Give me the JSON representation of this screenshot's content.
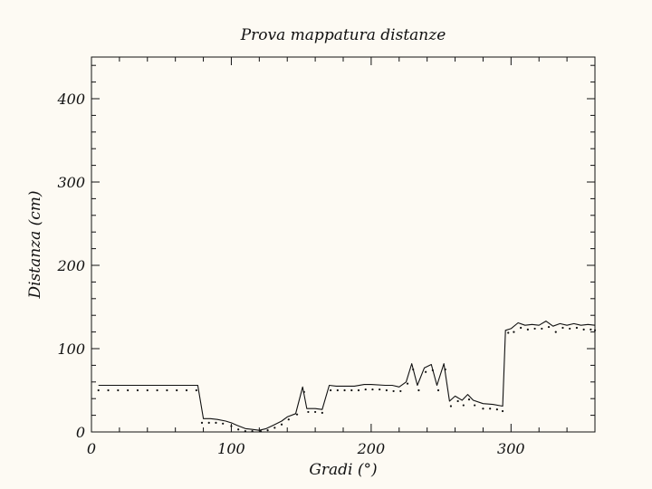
{
  "chart_data": {
    "type": "line",
    "title": "Prova mappatura distanze",
    "xlabel": "Gradi (°)",
    "ylabel": "Distanza (cm)",
    "xlim": [
      0,
      360
    ],
    "ylim": [
      0,
      450
    ],
    "x_ticks": [
      0,
      100,
      200,
      300
    ],
    "y_ticks": [
      0,
      100,
      200,
      300,
      400
    ],
    "x_tick_labels": [
      "0",
      "100",
      "200",
      "300"
    ],
    "y_tick_labels": [
      "0",
      "100",
      "200",
      "300",
      "400"
    ],
    "grid": false,
    "legend": "none",
    "colors": {
      "background": "#fdfaf3",
      "ink": "#111111"
    },
    "series": [
      {
        "style": "solid",
        "points": [
          [
            5,
            56
          ],
          [
            76,
            56
          ],
          [
            80,
            16
          ],
          [
            85,
            16
          ],
          [
            90,
            15
          ],
          [
            96,
            13
          ],
          [
            100,
            11
          ],
          [
            104,
            8
          ],
          [
            110,
            4
          ],
          [
            115,
            3
          ],
          [
            120,
            2
          ],
          [
            125,
            4
          ],
          [
            130,
            8
          ],
          [
            136,
            13
          ],
          [
            140,
            18
          ],
          [
            146,
            22
          ],
          [
            151,
            54
          ],
          [
            154,
            28
          ],
          [
            160,
            28
          ],
          [
            165,
            27
          ],
          [
            170,
            56
          ],
          [
            175,
            55
          ],
          [
            180,
            55
          ],
          [
            188,
            55
          ],
          [
            195,
            57
          ],
          [
            200,
            57
          ],
          [
            210,
            56
          ],
          [
            215,
            56
          ],
          [
            220,
            54
          ],
          [
            225,
            60
          ],
          [
            229,
            82
          ],
          [
            233,
            56
          ],
          [
            238,
            77
          ],
          [
            243,
            81
          ],
          [
            247,
            56
          ],
          [
            252,
            82
          ],
          [
            256,
            37
          ],
          [
            260,
            43
          ],
          [
            265,
            38
          ],
          [
            269,
            45
          ],
          [
            273,
            38
          ],
          [
            280,
            34
          ],
          [
            287,
            33
          ],
          [
            294,
            31
          ],
          [
            296,
            122
          ],
          [
            300,
            124
          ],
          [
            305,
            131
          ],
          [
            310,
            128
          ],
          [
            315,
            129
          ],
          [
            320,
            128
          ],
          [
            325,
            133
          ],
          [
            330,
            127
          ],
          [
            335,
            130
          ],
          [
            340,
            128
          ],
          [
            345,
            130
          ],
          [
            350,
            128
          ],
          [
            355,
            129
          ],
          [
            360,
            128
          ]
        ]
      },
      {
        "style": "dotted",
        "points": [
          [
            5,
            50
          ],
          [
            12,
            50
          ],
          [
            19,
            50
          ],
          [
            26,
            50
          ],
          [
            33,
            50
          ],
          [
            40,
            50
          ],
          [
            47,
            50
          ],
          [
            54,
            50
          ],
          [
            61,
            50
          ],
          [
            68,
            50
          ],
          [
            75,
            50
          ],
          [
            79,
            11
          ],
          [
            84,
            11
          ],
          [
            89,
            11
          ],
          [
            94,
            10
          ],
          [
            100,
            7
          ],
          [
            105,
            3
          ],
          [
            110,
            1
          ],
          [
            115,
            1
          ],
          [
            121,
            1
          ],
          [
            126,
            2
          ],
          [
            131,
            5
          ],
          [
            136,
            9
          ],
          [
            141,
            15
          ],
          [
            147,
            21
          ],
          [
            152,
            48
          ],
          [
            155,
            24
          ],
          [
            160,
            24
          ],
          [
            165,
            23
          ],
          [
            171,
            50
          ],
          [
            176,
            50
          ],
          [
            181,
            50
          ],
          [
            186,
            50
          ],
          [
            191,
            50
          ],
          [
            196,
            51
          ],
          [
            201,
            51
          ],
          [
            206,
            51
          ],
          [
            211,
            50
          ],
          [
            216,
            49
          ],
          [
            221,
            49
          ],
          [
            226,
            58
          ],
          [
            230,
            75
          ],
          [
            234,
            50
          ],
          [
            239,
            72
          ],
          [
            244,
            74
          ],
          [
            248,
            50
          ],
          [
            253,
            75
          ],
          [
            257,
            31
          ],
          [
            262,
            37
          ],
          [
            266,
            32
          ],
          [
            270,
            39
          ],
          [
            274,
            32
          ],
          [
            280,
            28
          ],
          [
            285,
            28
          ],
          [
            290,
            27
          ],
          [
            294,
            25
          ],
          [
            298,
            119
          ],
          [
            302,
            120
          ],
          [
            307,
            125
          ],
          [
            312,
            123
          ],
          [
            317,
            124
          ],
          [
            322,
            124
          ],
          [
            327,
            126
          ],
          [
            332,
            120
          ],
          [
            337,
            125
          ],
          [
            342,
            124
          ],
          [
            347,
            125
          ],
          [
            352,
            123
          ],
          [
            357,
            123
          ],
          [
            360,
            122
          ]
        ]
      }
    ]
  }
}
